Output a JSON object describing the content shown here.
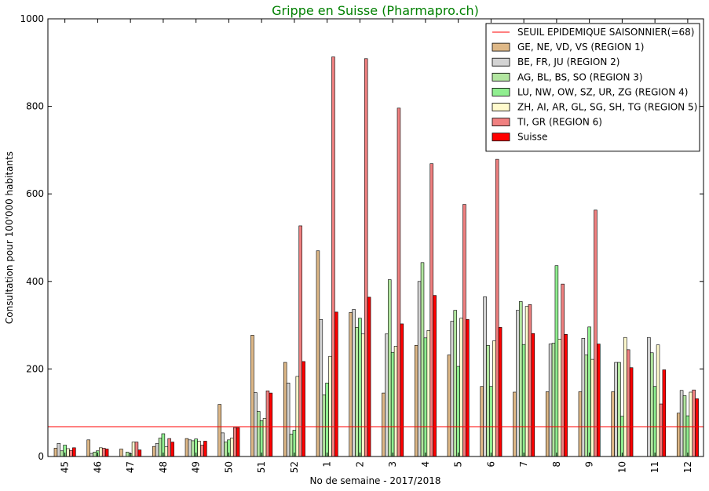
{
  "chart_data": {
    "type": "bar",
    "title": "Grippe en Suisse (Pharmapro.ch)",
    "title_color": "#008000",
    "xlabel": "No de semaine - 2017/2018",
    "ylabel": "Consultation pour 100'000 habitants",
    "ylim": [
      0,
      1000
    ],
    "yticks": [
      0,
      200,
      400,
      600,
      800,
      1000
    ],
    "categories": [
      "45",
      "46",
      "47",
      "48",
      "49",
      "50",
      "51",
      "52",
      "1",
      "2",
      "3",
      "4",
      "5",
      "6",
      "7",
      "8",
      "9",
      "10",
      "11",
      "12"
    ],
    "threshold": {
      "name": "SEUIL EPIDEMIQUE SAISONNIER(=68)",
      "value": 68,
      "color": "#ff0000"
    },
    "legend_position": "top-right",
    "series": [
      {
        "name": "GE, NE, VD, VS (REGION 1)",
        "color": "#deb887",
        "values": [
          19,
          38,
          17,
          23,
          41,
          119,
          277,
          215,
          470,
          329,
          145,
          254,
          232,
          160,
          147,
          148,
          148,
          148,
          0,
          99
        ]
      },
      {
        "name": "BE, FR, JU (REGION 2)",
        "color": "#d3d3d3",
        "values": [
          30,
          7,
          0,
          30,
          38,
          54,
          146,
          168,
          313,
          336,
          280,
          400,
          309,
          365,
          334,
          257,
          270,
          215,
          272,
          151
        ]
      },
      {
        "name": "AG, BL, BS, SO (REGION 3)",
        "color": "#b2e6a0",
        "values": [
          13,
          10,
          10,
          42,
          36,
          33,
          103,
          51,
          141,
          295,
          404,
          443,
          334,
          254,
          354,
          259,
          232,
          215,
          237,
          139
        ]
      },
      {
        "name": "LU, NW, OW, SZ, UR, ZG (REGION 4)",
        "color": "#90ee90",
        "values": [
          26,
          13,
          6,
          52,
          40,
          38,
          82,
          60,
          168,
          316,
          238,
          271,
          206,
          160,
          256,
          436,
          296,
          92,
          160,
          93
        ]
      },
      {
        "name": "ZH, AI, AR, GL, SG, SH, TG (REGION 5)",
        "color": "#fffacd",
        "values": [
          18,
          20,
          33,
          22,
          35,
          42,
          87,
          183,
          229,
          280,
          252,
          288,
          316,
          264,
          343,
          268,
          222,
          272,
          255,
          147
        ]
      },
      {
        "name": "TI, GR (REGION 6)",
        "color": "#f08080",
        "values": [
          14,
          19,
          33,
          41,
          26,
          66,
          150,
          527,
          913,
          909,
          796,
          669,
          576,
          679,
          347,
          394,
          563,
          244,
          120,
          152
        ]
      },
      {
        "name": "Suisse",
        "color": "#ff0000",
        "values": [
          20,
          17,
          15,
          33,
          35,
          66,
          145,
          217,
          330,
          364,
          303,
          368,
          313,
          295,
          281,
          279,
          257,
          203,
          198,
          132
        ]
      }
    ]
  }
}
